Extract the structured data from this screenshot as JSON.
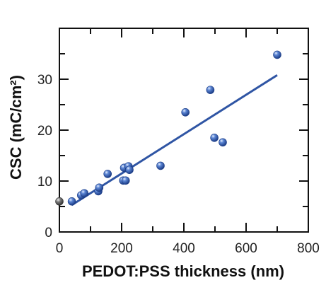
{
  "chart_data": {
    "type": "scatter",
    "title": "",
    "xlabel": "PEDOT:PSS thickness (nm)",
    "ylabel": "CSC (mC/cm²)",
    "xlim": [
      0,
      800
    ],
    "ylim": [
      0,
      40
    ],
    "x_ticks": [
      0,
      200,
      400,
      600,
      800
    ],
    "y_ticks": [
      0,
      10,
      20,
      30
    ],
    "grid": false,
    "legend": "none",
    "series": [
      {
        "color": "#3a63b4",
        "points": [
          {
            "x": 40,
            "y": 6.0
          },
          {
            "x": 70,
            "y": 7.2
          },
          {
            "x": 80,
            "y": 7.6
          },
          {
            "x": 125,
            "y": 8.0
          },
          {
            "x": 128,
            "y": 8.7
          },
          {
            "x": 155,
            "y": 11.4
          },
          {
            "x": 205,
            "y": 10.1
          },
          {
            "x": 213,
            "y": 10.1
          },
          {
            "x": 208,
            "y": 12.6
          },
          {
            "x": 222,
            "y": 12.9
          },
          {
            "x": 225,
            "y": 12.2
          },
          {
            "x": 325,
            "y": 13.0
          },
          {
            "x": 405,
            "y": 23.5
          },
          {
            "x": 485,
            "y": 27.9
          },
          {
            "x": 498,
            "y": 18.5
          },
          {
            "x": 525,
            "y": 17.6
          },
          {
            "x": 700,
            "y": 34.8
          }
        ]
      },
      {
        "color": "#6a6a6a",
        "points": [
          {
            "x": 0,
            "y": 6.0
          }
        ]
      }
    ],
    "fit_line": {
      "color": "#2f55a4",
      "x": [
        40,
        700
      ],
      "y": [
        5.3,
        30.8
      ]
    }
  }
}
